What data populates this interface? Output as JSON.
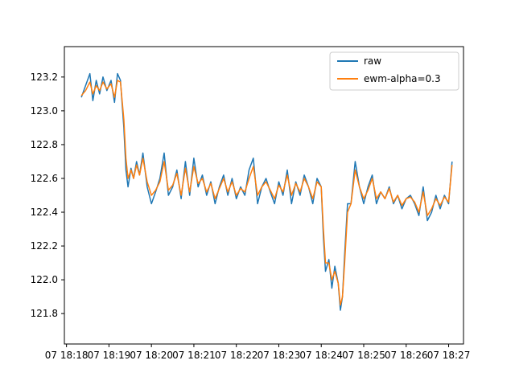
{
  "chart_data": {
    "type": "line",
    "title": "",
    "xlabel": "",
    "ylabel": "",
    "x_tick_labels": [
      "07 18:18",
      "07 18:19",
      "07 18:20",
      "07 18:21",
      "07 18:22",
      "07 18:23",
      "07 18:24",
      "07 18:25",
      "07 18:26",
      "07 18:27"
    ],
    "x_tick_minutes": [
      18,
      19,
      20,
      21,
      22,
      23,
      24,
      25,
      26,
      27
    ],
    "xlim_minutes": [
      17.95,
      27.35
    ],
    "y_ticks": [
      121.8,
      122.0,
      122.2,
      122.4,
      122.6,
      122.8,
      123.0,
      123.2
    ],
    "ylim": [
      121.62,
      123.38
    ],
    "grid": false,
    "legend_position": "top-right",
    "series": [
      {
        "name": "raw",
        "color": "#1f77b4",
        "x_minutes": [
          18.35,
          18.45,
          18.55,
          18.62,
          18.7,
          18.78,
          18.86,
          18.95,
          19.05,
          19.13,
          19.2,
          19.27,
          19.35,
          19.4,
          19.45,
          19.52,
          19.58,
          19.65,
          19.72,
          19.8,
          19.9,
          20.0,
          20.1,
          20.2,
          20.3,
          20.4,
          20.5,
          20.6,
          20.7,
          20.8,
          20.9,
          21.0,
          21.1,
          21.2,
          21.3,
          21.4,
          21.5,
          21.6,
          21.7,
          21.8,
          21.9,
          22.0,
          22.1,
          22.2,
          22.3,
          22.4,
          22.5,
          22.6,
          22.7,
          22.8,
          22.9,
          23.0,
          23.1,
          23.2,
          23.3,
          23.4,
          23.5,
          23.6,
          23.7,
          23.8,
          23.9,
          24.0,
          24.05,
          24.1,
          24.18,
          24.25,
          24.32,
          24.4,
          24.45,
          24.5,
          24.55,
          24.62,
          24.7,
          24.8,
          24.9,
          25.0,
          25.1,
          25.2,
          25.3,
          25.4,
          25.5,
          25.6,
          25.7,
          25.8,
          25.9,
          26.0,
          26.1,
          26.2,
          26.3,
          26.4,
          26.5,
          26.6,
          26.7,
          26.8,
          26.9,
          27.0,
          27.08
        ],
        "values": [
          123.08,
          123.15,
          123.22,
          123.06,
          123.18,
          123.1,
          123.2,
          123.12,
          123.18,
          123.05,
          123.22,
          123.18,
          122.9,
          122.65,
          122.55,
          122.66,
          122.6,
          122.7,
          122.62,
          122.75,
          122.55,
          122.45,
          122.52,
          122.6,
          122.75,
          122.5,
          122.55,
          122.65,
          122.48,
          122.7,
          122.5,
          122.72,
          122.55,
          122.62,
          122.5,
          122.58,
          122.45,
          122.55,
          122.62,
          122.5,
          122.6,
          122.48,
          122.55,
          122.5,
          122.65,
          122.72,
          122.45,
          122.55,
          122.6,
          122.52,
          122.45,
          122.58,
          122.5,
          122.65,
          122.45,
          122.58,
          122.5,
          122.62,
          122.55,
          122.45,
          122.6,
          122.55,
          122.25,
          122.05,
          122.12,
          121.95,
          122.08,
          121.98,
          121.82,
          121.9,
          122.15,
          122.45,
          122.45,
          122.7,
          122.55,
          122.45,
          122.55,
          122.62,
          122.45,
          122.52,
          122.48,
          122.55,
          122.45,
          122.5,
          122.42,
          122.48,
          122.5,
          122.45,
          122.38,
          122.55,
          122.35,
          122.4,
          122.5,
          122.42,
          122.5,
          122.45,
          122.7
        ]
      },
      {
        "name": "ewm-alpha=0.3",
        "color": "#ff7f0e",
        "x_minutes": [
          18.35,
          18.45,
          18.55,
          18.62,
          18.7,
          18.78,
          18.86,
          18.95,
          19.05,
          19.13,
          19.2,
          19.27,
          19.35,
          19.4,
          19.45,
          19.52,
          19.58,
          19.65,
          19.72,
          19.8,
          19.9,
          20.0,
          20.1,
          20.2,
          20.3,
          20.4,
          20.5,
          20.6,
          20.7,
          20.8,
          20.9,
          21.0,
          21.1,
          21.2,
          21.3,
          21.4,
          21.5,
          21.6,
          21.7,
          21.8,
          21.9,
          22.0,
          22.1,
          22.2,
          22.3,
          22.4,
          22.5,
          22.6,
          22.7,
          22.8,
          22.9,
          23.0,
          23.1,
          23.2,
          23.3,
          23.4,
          23.5,
          23.6,
          23.7,
          23.8,
          23.9,
          24.0,
          24.05,
          24.1,
          24.18,
          24.25,
          24.32,
          24.4,
          24.45,
          24.5,
          24.55,
          24.62,
          24.7,
          24.8,
          24.9,
          25.0,
          25.1,
          25.2,
          25.3,
          25.4,
          25.5,
          25.6,
          25.7,
          25.8,
          25.9,
          26.0,
          26.1,
          26.2,
          26.3,
          26.4,
          26.5,
          26.6,
          26.7,
          26.8,
          26.9,
          27.0,
          27.08
        ],
        "values": [
          123.09,
          123.12,
          123.17,
          123.1,
          123.15,
          123.12,
          123.17,
          123.13,
          123.16,
          123.08,
          123.18,
          123.17,
          122.95,
          122.72,
          122.6,
          122.65,
          122.6,
          122.68,
          122.62,
          122.72,
          122.58,
          122.5,
          122.53,
          122.58,
          122.7,
          122.53,
          122.56,
          122.63,
          122.5,
          122.66,
          122.52,
          122.67,
          122.57,
          122.6,
          122.52,
          122.57,
          122.48,
          122.54,
          122.6,
          122.52,
          122.58,
          122.5,
          122.54,
          122.52,
          122.6,
          122.67,
          122.5,
          122.55,
          122.58,
          122.53,
          122.48,
          122.56,
          122.52,
          122.62,
          122.5,
          122.57,
          122.52,
          122.6,
          122.55,
          122.48,
          122.58,
          122.55,
          122.3,
          122.1,
          122.1,
          122.0,
          122.05,
          121.98,
          121.85,
          121.9,
          122.1,
          122.4,
          122.45,
          122.65,
          122.55,
          122.48,
          122.53,
          122.6,
          122.48,
          122.52,
          122.48,
          122.54,
          122.46,
          122.5,
          122.44,
          122.48,
          122.49,
          122.46,
          122.4,
          122.52,
          122.38,
          122.42,
          122.48,
          122.44,
          122.49,
          122.46,
          122.68
        ]
      }
    ]
  }
}
